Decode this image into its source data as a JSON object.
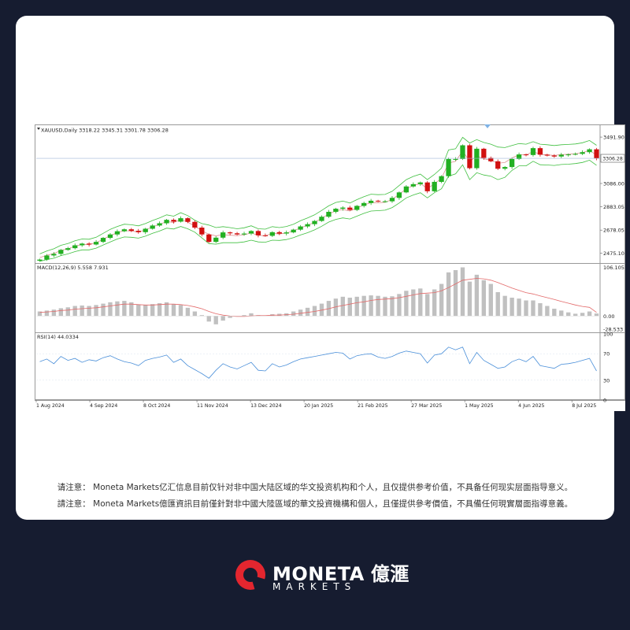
{
  "notices": {
    "simplified": "请注意： Moneta Markets亿汇信息目前仅针对非中国大陆区域的华文投资机构和个人，且仅提供参考价值，不具备任何现实层面指导意义。",
    "traditional": "請注意： Moneta Markets億匯資訊目前僅針對非中國大陸區域的華文投資機構和個人，且僅提供參考價值，不具備任何現實層面指導意義。"
  },
  "brand": {
    "name": "MONETA",
    "name_cn": "億滙",
    "sub": "MARKETS",
    "colors": {
      "background": "#161c30",
      "logo_red": "#e3262f",
      "text": "#ffffff"
    }
  },
  "chart_data": {
    "type": "candlestick",
    "symbol_header": "XAUUSD,Daily  3318.22 3345.31 3301.78 3306.28",
    "price_scale_labels": [
      "3491.90",
      "3086.00",
      "2883.05",
      "2678.05",
      "2475.10"
    ],
    "price_ticks": [
      3491.9,
      3086.0,
      2883.05,
      2678.05,
      2475.1
    ],
    "current_price_label": "3306.28",
    "current_price": 3306.28,
    "price_range": [
      2390,
      3520
    ],
    "closes": [
      2420,
      2456,
      2470,
      2505,
      2520,
      2545,
      2560,
      2552,
      2575,
      2610,
      2640,
      2668,
      2685,
      2672,
      2660,
      2690,
      2718,
      2738,
      2768,
      2752,
      2782,
      2750,
      2700,
      2640,
      2575,
      2612,
      2658,
      2650,
      2640,
      2648,
      2670,
      2632,
      2628,
      2660,
      2648,
      2658,
      2682,
      2710,
      2730,
      2758,
      2795,
      2838,
      2865,
      2875,
      2855,
      2890,
      2915,
      2935,
      2930,
      2930,
      2960,
      3008,
      3060,
      3080,
      3095,
      3018,
      3100,
      3150,
      3300,
      3300,
      3420,
      3220,
      3390,
      3310,
      3280,
      3215,
      3230,
      3300,
      3340,
      3335,
      3395,
      3338,
      3330,
      3322,
      3338,
      3340,
      3345,
      3360,
      3385,
      3306
    ],
    "bollinger": {
      "upper": [
        2470,
        2495,
        2515,
        2545,
        2560,
        2585,
        2600,
        2598,
        2615,
        2650,
        2685,
        2710,
        2730,
        2725,
        2715,
        2735,
        2762,
        2784,
        2812,
        2800,
        2830,
        2805,
        2765,
        2735,
        2722,
        2700,
        2708,
        2700,
        2690,
        2698,
        2716,
        2690,
        2686,
        2708,
        2700,
        2710,
        2730,
        2760,
        2785,
        2812,
        2850,
        2890,
        2920,
        2932,
        2915,
        2945,
        2970,
        2992,
        2988,
        2990,
        3018,
        3068,
        3120,
        3148,
        3168,
        3120,
        3165,
        3220,
        3380,
        3390,
        3490,
        3440,
        3470,
        3445,
        3430,
        3405,
        3400,
        3418,
        3435,
        3430,
        3452,
        3430,
        3425,
        3418,
        3425,
        3428,
        3432,
        3442,
        3462,
        3420
      ],
      "lower": [
        2405,
        2420,
        2432,
        2455,
        2470,
        2490,
        2505,
        2505,
        2520,
        2548,
        2575,
        2600,
        2618,
        2615,
        2608,
        2625,
        2650,
        2670,
        2695,
        2688,
        2710,
        2690,
        2660,
        2610,
        2560,
        2555,
        2568,
        2568,
        2568,
        2575,
        2590,
        2575,
        2572,
        2590,
        2588,
        2595,
        2612,
        2635,
        2655,
        2680,
        2712,
        2748,
        2772,
        2785,
        2775,
        2800,
        2825,
        2845,
        2848,
        2852,
        2875,
        2915,
        2960,
        2985,
        3005,
        2960,
        3005,
        3040,
        3150,
        3170,
        3250,
        3120,
        3180,
        3160,
        3150,
        3120,
        3140,
        3200,
        3240,
        3240,
        3280,
        3250,
        3248,
        3244,
        3252,
        3255,
        3260,
        3270,
        3290,
        3245
      ]
    },
    "macd": {
      "label": "MACD(12,26,9) 5.558 7.931",
      "scale_labels": [
        "106.105",
        "0.00",
        "-28.533"
      ],
      "range": [
        -32,
        112
      ],
      "histogram": [
        10,
        12,
        14,
        17,
        19,
        22,
        23,
        22,
        24,
        27,
        30,
        32,
        33,
        30,
        25,
        24,
        26,
        28,
        30,
        26,
        24,
        18,
        10,
        2,
        -12,
        -18,
        -10,
        -4,
        0,
        2,
        6,
        2,
        0,
        4,
        5,
        6,
        10,
        14,
        18,
        22,
        27,
        33,
        38,
        42,
        40,
        42,
        44,
        45,
        44,
        42,
        43,
        48,
        55,
        58,
        60,
        48,
        58,
        70,
        95,
        100,
        106,
        75,
        90,
        78,
        70,
        52,
        44,
        40,
        38,
        34,
        34,
        28,
        22,
        16,
        12,
        8,
        5,
        7,
        10,
        5.558
      ],
      "signal": [
        8,
        9,
        10,
        12,
        13,
        15,
        16,
        17,
        18,
        20,
        22,
        24,
        26,
        26,
        25,
        24,
        24,
        25,
        26,
        26,
        25,
        23,
        20,
        16,
        10,
        5,
        2,
        0,
        -1,
        -1,
        0,
        1,
        1,
        2,
        2,
        3,
        4,
        6,
        8,
        10,
        13,
        16,
        20,
        23,
        26,
        29,
        31,
        34,
        36,
        37,
        38,
        40,
        43,
        46,
        49,
        50,
        51,
        55,
        62,
        70,
        78,
        80,
        82,
        81,
        78,
        73,
        67,
        61,
        56,
        51,
        48,
        44,
        40,
        36,
        32,
        28,
        24,
        21,
        19,
        7.931
      ]
    },
    "rsi": {
      "label": "RSI(14) 44.0334",
      "scale_labels": [
        "100",
        "70",
        "30",
        "0"
      ],
      "levels": [
        100,
        70,
        30,
        0
      ],
      "values": [
        58,
        62,
        55,
        66,
        60,
        63,
        57,
        61,
        59,
        64,
        67,
        62,
        58,
        56,
        52,
        60,
        63,
        65,
        68,
        57,
        62,
        52,
        46,
        40,
        33,
        45,
        55,
        50,
        47,
        52,
        57,
        45,
        44,
        55,
        50,
        53,
        58,
        62,
        64,
        66,
        68,
        70,
        72,
        71,
        62,
        67,
        69,
        70,
        65,
        63,
        66,
        71,
        74,
        72,
        70,
        56,
        68,
        70,
        80,
        76,
        80,
        55,
        72,
        60,
        54,
        48,
        50,
        58,
        62,
        58,
        66,
        52,
        50,
        48,
        54,
        55,
        57,
        60,
        63,
        44.0334
      ]
    },
    "x_tick_labels": [
      "1 Aug 2024",
      "4 Sep 2024",
      "8 Oct 2024",
      "11 Nov 2024",
      "13 Dec 2024",
      "20 Jan 2025",
      "21 Feb 2025",
      "27 Mar 2025",
      "1 May 2025",
      "4 Jun 2025",
      "8 Jul 2025"
    ],
    "colors": {
      "up": "#22b022",
      "down": "#d11010",
      "band": "#3fbf3f",
      "macd_hist": "#c0c0c0",
      "macd_signal": "#e36a6a",
      "rsi_line": "#4a8fd9",
      "grid": "#d9e3ee"
    }
  }
}
